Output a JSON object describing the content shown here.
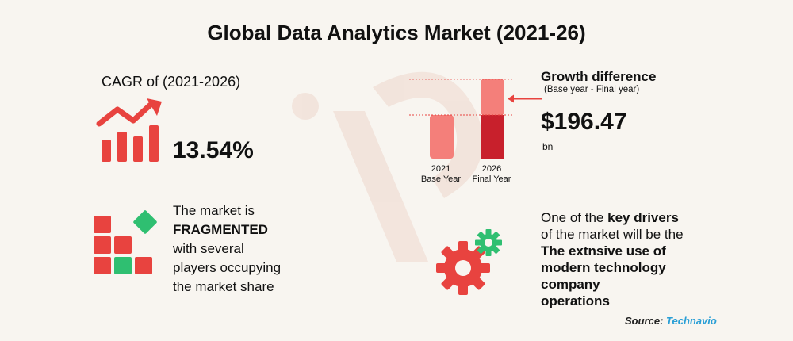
{
  "title": "Global Data Analytics Market (2021-26)",
  "cagr": {
    "label": "CAGR of (2021-2026)",
    "value": "13.54%"
  },
  "fragmentation": {
    "line1": "The market is",
    "line2": "FRAGMENTED",
    "line3": "with several",
    "line4": "players occupying",
    "line5": "the market share"
  },
  "growth": {
    "title": "Growth difference",
    "subtitle": "(Base year - Final year)",
    "value": "$196.47",
    "unit": "bn"
  },
  "drivers": {
    "line1": "One of the ",
    "line1_bold": "key drivers",
    "line2": "of the market will be the",
    "bold_lines": [
      "The extnsive use of",
      "modern technology",
      "company",
      "operations"
    ]
  },
  "source": {
    "label": "Source:",
    "brand": "Technavio"
  },
  "colors": {
    "red": "#e8433f",
    "dark_red": "#c8202c",
    "light_red": "#f47f7a",
    "green": "#2fbf71",
    "accent_blue": "#2a9fd6"
  },
  "chart_data": {
    "type": "bar",
    "categories": [
      "2021\nBase Year",
      "2026\nFinal Year"
    ],
    "category_labels": [
      {
        "year": "2021",
        "label": "Base Year"
      },
      {
        "year": "2026",
        "label": "Final Year"
      }
    ],
    "values": [
      1.0,
      1.82
    ],
    "increment_segment": 0.82,
    "title": "",
    "xlabel": "",
    "ylabel": "",
    "ylim": [
      0,
      2.0
    ],
    "grid": false
  }
}
